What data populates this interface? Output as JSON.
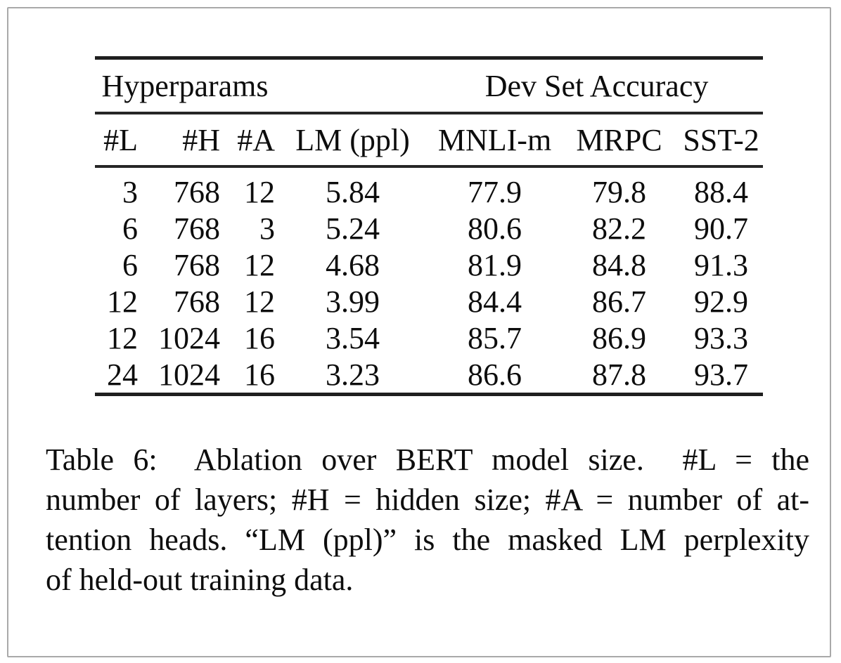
{
  "figure": {
    "kind": "paper-table-figure",
    "colors": {
      "background": "#ffffff",
      "text": "#0d0d0d",
      "rule": "#1f1f1f",
      "frame_border": "#a9a9a9"
    }
  },
  "table": {
    "group_headers": [
      {
        "label": "Hyperparams",
        "colspan": 3,
        "align": "center"
      },
      {
        "label": "",
        "colspan": 1,
        "align": "center"
      },
      {
        "label": "Dev Set Accuracy",
        "colspan": 3,
        "align": "center"
      }
    ],
    "columns": [
      {
        "label": "#L",
        "align": "right"
      },
      {
        "label": "#H",
        "align": "right"
      },
      {
        "label": "#A",
        "align": "right"
      },
      {
        "label": "LM (ppl)",
        "align": "center"
      },
      {
        "label": "MNLI-m",
        "align": "center"
      },
      {
        "label": "MRPC",
        "align": "center"
      },
      {
        "label": "SST-2",
        "align": "center"
      }
    ],
    "rows": [
      [
        "3",
        "768",
        "12",
        "5.84",
        "77.9",
        "79.8",
        "88.4"
      ],
      [
        "6",
        "768",
        "3",
        "5.24",
        "80.6",
        "82.2",
        "90.7"
      ],
      [
        "6",
        "768",
        "12",
        "4.68",
        "81.9",
        "84.8",
        "91.3"
      ],
      [
        "12",
        "768",
        "12",
        "3.99",
        "84.4",
        "86.7",
        "92.9"
      ],
      [
        "12",
        "1024",
        "16",
        "3.54",
        "85.7",
        "86.9",
        "93.3"
      ],
      [
        "24",
        "1024",
        "16",
        "3.23",
        "86.6",
        "87.8",
        "93.7"
      ]
    ]
  },
  "caption": {
    "lines": [
      "Table 6:  Ablation over BERT model size.  #L = the",
      "number of layers; #H = hidden size; #A = number of at-",
      "tention heads. “LM (ppl)” is the masked LM perplexity",
      "of held-out training data."
    ]
  }
}
